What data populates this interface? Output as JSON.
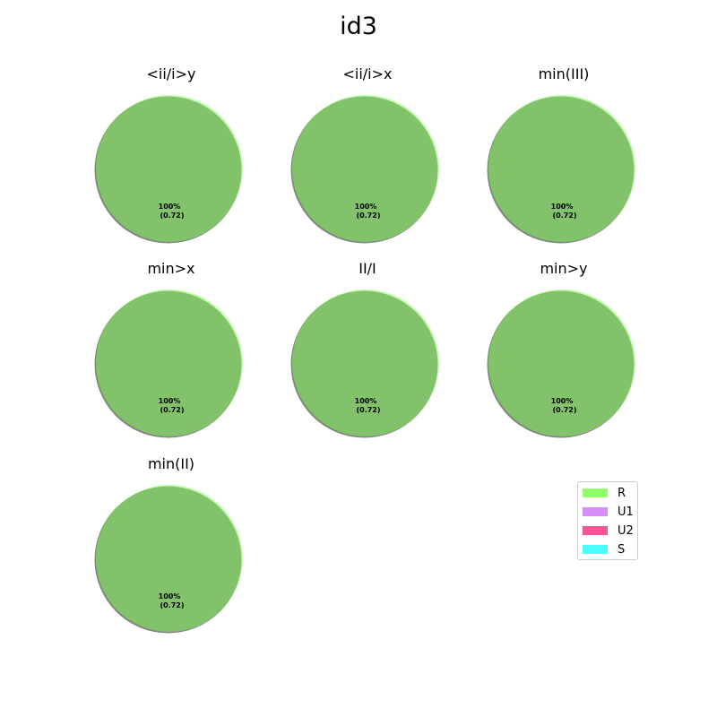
{
  "chart_data": {
    "type": "pie",
    "title": "id3",
    "legend_position": "right",
    "legend": [
      {
        "label": "R",
        "color": "#7fff52"
      },
      {
        "label": "U1",
        "color": "#d17bf7"
      },
      {
        "label": "U2",
        "color": "#ff3584"
      },
      {
        "label": "S",
        "color": "#2cfcfc"
      }
    ],
    "pies": [
      {
        "title": "<ii/i>y",
        "slices": [
          {
            "label": "R",
            "value": 0.72,
            "percent_label": "100%",
            "value_label": "(0.72)"
          }
        ]
      },
      {
        "title": "<ii/i>x",
        "slices": [
          {
            "label": "R",
            "value": 0.72,
            "percent_label": "100%",
            "value_label": "(0.72)"
          }
        ]
      },
      {
        "title": "min(III)",
        "slices": [
          {
            "label": "R",
            "value": 0.72,
            "percent_label": "100%",
            "value_label": "(0.72)"
          }
        ]
      },
      {
        "title": "min>x",
        "slices": [
          {
            "label": "R",
            "value": 0.72,
            "percent_label": "100%",
            "value_label": "(0.72)"
          }
        ]
      },
      {
        "title": "II/I",
        "slices": [
          {
            "label": "R",
            "value": 0.72,
            "percent_label": "100%",
            "value_label": "(0.72)"
          }
        ]
      },
      {
        "title": "min>y",
        "slices": [
          {
            "label": "R",
            "value": 0.72,
            "percent_label": "100%",
            "value_label": "(0.72)"
          }
        ]
      },
      {
        "title": "min(II)",
        "slices": [
          {
            "label": "R",
            "value": 0.72,
            "percent_label": "100%",
            "value_label": "(0.72)"
          }
        ]
      }
    ]
  }
}
